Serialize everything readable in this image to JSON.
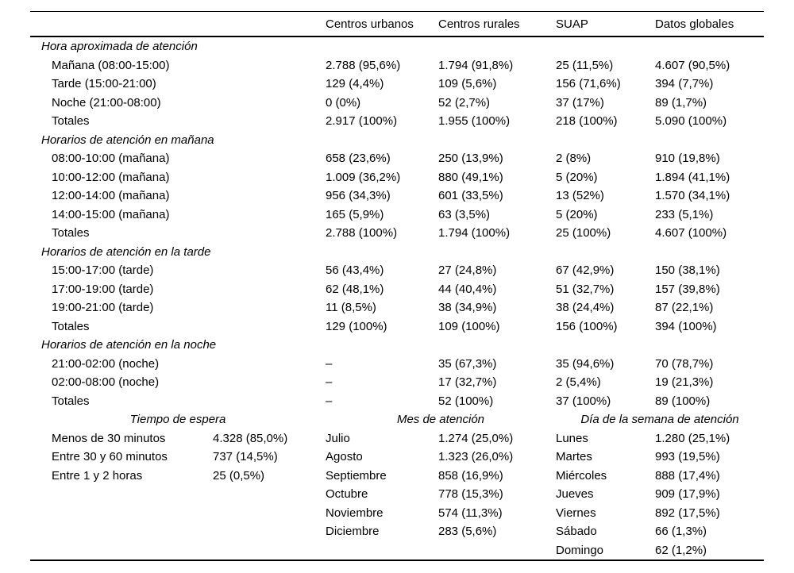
{
  "table": {
    "columns": [
      "",
      "Centros urbanos",
      "Centros rurales",
      "SUAP",
      "Datos globales"
    ],
    "sections": [
      {
        "title": "Hora aproximada de atención",
        "rows": [
          {
            "label": "Mañana (08:00-15:00)",
            "values": [
              "2.788 (95,6%)",
              "1.794 (91,8%)",
              "25 (11,5%)",
              "4.607 (90,5%)"
            ]
          },
          {
            "label": "Tarde (15:00-21:00)",
            "values": [
              "129 (4,4%)",
              "109 (5,6%)",
              "156 (71,6%)",
              "394 (7,7%)"
            ]
          },
          {
            "label": "Noche (21:00-08:00)",
            "values": [
              "0 (0%)",
              "52 (2,7%)",
              "37 (17%)",
              "89 (1,7%)"
            ]
          },
          {
            "label": "Totales",
            "values": [
              "2.917 (100%)",
              "1.955 (100%)",
              "218 (100%)",
              "5.090 (100%)"
            ]
          }
        ]
      },
      {
        "title": "Horarios de atención en mañana",
        "rows": [
          {
            "label": "08:00-10:00 (mañana)",
            "values": [
              "658 (23,6%)",
              "250 (13,9%)",
              "2 (8%)",
              "910 (19,8%)"
            ]
          },
          {
            "label": "10:00-12:00 (mañana)",
            "values": [
              "1.009 (36,2%)",
              "880 (49,1%)",
              "5 (20%)",
              "1.894 (41,1%)"
            ]
          },
          {
            "label": "12:00-14:00 (mañana)",
            "values": [
              "956 (34,3%)",
              "601 (33,5%)",
              "13 (52%)",
              "1.570 (34,1%)"
            ]
          },
          {
            "label": "14:00-15:00 (mañana)",
            "values": [
              "165 (5,9%)",
              "63 (3,5%)",
              "5 (20%)",
              "233 (5,1%)"
            ]
          },
          {
            "label": "Totales",
            "values": [
              "2.788 (100%)",
              "1.794 (100%)",
              "25 (100%)",
              "4.607 (100%)"
            ]
          }
        ]
      },
      {
        "title": "Horarios de atención en la tarde",
        "rows": [
          {
            "label": "15:00-17:00 (tarde)",
            "values": [
              "56 (43,4%)",
              "27 (24,8%)",
              "67 (42,9%)",
              "150 (38,1%)"
            ]
          },
          {
            "label": "17:00-19:00 (tarde)",
            "values": [
              "62 (48,1%)",
              "44 (40,4%)",
              "51 (32,7%)",
              "157 (39,8%)"
            ]
          },
          {
            "label": "19:00-21:00 (tarde)",
            "values": [
              "11 (8,5%)",
              "38 (34,9%)",
              "38 (24,4%)",
              "87 (22,1%)"
            ]
          },
          {
            "label": "Totales",
            "values": [
              "129 (100%)",
              "109 (100%)",
              "156 (100%)",
              "394 (100%)"
            ]
          }
        ]
      },
      {
        "title": "Horarios de atención en la noche",
        "rows": [
          {
            "label": "21:00-02:00 (noche)",
            "values": [
              "–",
              "35 (67,3%)",
              "35 (94,6%)",
              "70 (78,7%)"
            ]
          },
          {
            "label": "02:00-08:00 (noche)",
            "values": [
              "–",
              "17 (32,7%)",
              "2 (5,4%)",
              "19 (21,3%)"
            ]
          },
          {
            "label": "Totales",
            "values": [
              "–",
              "52 (100%)",
              "37 (100%)",
              "89 (100%)"
            ]
          }
        ]
      }
    ],
    "bottom_panels": [
      {
        "id": "espera",
        "title": "Tiempo de espera",
        "rows": [
          {
            "label": "Menos de 30 minutos",
            "value": "4.328 (85,0%)"
          },
          {
            "label": "Entre 30 y 60 minutos",
            "value": "737 (14,5%)"
          },
          {
            "label": "Entre 1 y 2 horas",
            "value": "25 (0,5%)"
          }
        ]
      },
      {
        "id": "mes",
        "title": "Mes de atención",
        "rows": [
          {
            "label": "Julio",
            "value": "1.274 (25,0%)"
          },
          {
            "label": "Agosto",
            "value": "1.323 (26,0%)"
          },
          {
            "label": "Septiembre",
            "value": "858 (16,9%)"
          },
          {
            "label": "Octubre",
            "value": "778 (15,3%)"
          },
          {
            "label": "Noviembre",
            "value": "574 (11,3%)"
          },
          {
            "label": "Diciembre",
            "value": "283 (5,6%)"
          }
        ]
      },
      {
        "id": "dia",
        "title": "Día de la semana de atención",
        "rows": [
          {
            "label": "Lunes",
            "value": "1.280 (25,1%)"
          },
          {
            "label": "Martes",
            "value": "993 (19,5%)"
          },
          {
            "label": "Miércoles",
            "value": "888 (17,4%)"
          },
          {
            "label": "Jueves",
            "value": "909 (17,9%)"
          },
          {
            "label": "Viernes",
            "value": "892 (17,5%)"
          },
          {
            "label": "Sábado",
            "value": "66 (1,3%)"
          },
          {
            "label": "Domingo",
            "value": "62 (1,2%)"
          }
        ]
      }
    ]
  }
}
